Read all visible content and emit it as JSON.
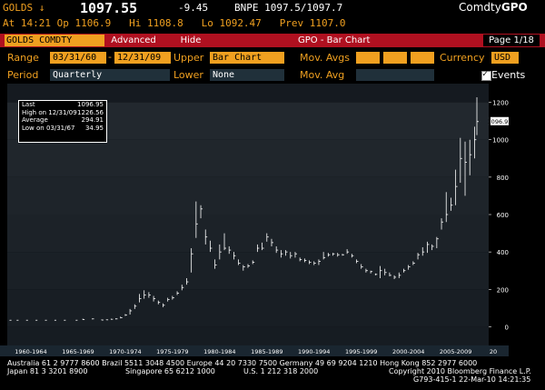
{
  "header": {
    "ticker": "GOLDS",
    "direction_glyph": "↓",
    "last_price": "1097.55",
    "change": "-9.45",
    "bid_ask": "BNPE 1097.5/1097.7",
    "brand_prefix": "Comdty",
    "brand_fn": "GPO",
    "time": "At 14:21",
    "open": "Op 1106.9",
    "high": "Hi 1108.8",
    "low": "Lo 1092.47",
    "prev": "Prev 1107.0"
  },
  "toolbar": {
    "security": "GOLDS COMDTY",
    "advanced_label": "Advanced",
    "hide_label": "Hide",
    "function_title": "GPO - Bar Chart",
    "page_info": "Page 1/18"
  },
  "settings": {
    "range_label": "Range",
    "range_start": "03/31/60",
    "range_sep": "-",
    "range_end": "12/31/09",
    "upper_label": "Upper",
    "upper_value": "Bar Chart",
    "mov_avgs_label_1": "Mov. Avgs",
    "currency_label": "Currency",
    "currency_value": "USD",
    "period_label": "Period",
    "period_value": "Quarterly",
    "lower_label": "Lower",
    "lower_value": "None",
    "mov_avgs_label_2": "Mov. Avg",
    "events_label": "Events",
    "events_checked": true
  },
  "legend": {
    "rows": [
      {
        "label": "Last",
        "value": "1096.95"
      },
      {
        "label": "High on 12/31/09",
        "value": "1226.56"
      },
      {
        "label": "Average",
        "value": "294.91"
      },
      {
        "label": "Low on 03/31/67",
        "value": "34.95"
      }
    ]
  },
  "chart_data": {
    "type": "bar",
    "last_label": "1096.95",
    "y_ticks": [
      0,
      200,
      400,
      600,
      800,
      1000,
      1200
    ],
    "ylim": [
      -100,
      1300
    ],
    "x_tick_labels": [
      "1960-1964",
      "1965-1969",
      "1970-1974",
      "1975-1979",
      "1980-1984",
      "1985-1989",
      "1990-1994",
      "1995-1999",
      "2000-2004",
      "2005-2009",
      "20"
    ],
    "xlim": [
      1960,
      2011
    ],
    "series": [
      {
        "values": [
          [
            1960.25,
            35,
            36,
            35
          ],
          [
            1961,
            35,
            36,
            35
          ],
          [
            1962,
            35,
            35.5,
            35
          ],
          [
            1963,
            35,
            35.5,
            35
          ],
          [
            1964,
            35,
            35.5,
            35
          ],
          [
            1965,
            35,
            35.5,
            35
          ],
          [
            1966,
            35,
            35.5,
            35
          ],
          [
            1967.25,
            35,
            35.5,
            34.95
          ],
          [
            1968,
            39,
            43,
            37
          ],
          [
            1969,
            42,
            44,
            40
          ],
          [
            1970,
            36,
            39,
            35
          ],
          [
            1970.5,
            37,
            39,
            36
          ],
          [
            1971,
            40,
            43,
            38
          ],
          [
            1971.5,
            42,
            45,
            40
          ],
          [
            1972,
            48,
            54,
            45
          ],
          [
            1972.5,
            62,
            68,
            58
          ],
          [
            1973,
            85,
            95,
            65
          ],
          [
            1973.5,
            110,
            120,
            95
          ],
          [
            1974,
            150,
            175,
            130
          ],
          [
            1974.5,
            170,
            195,
            150
          ],
          [
            1975,
            170,
            185,
            155
          ],
          [
            1975.5,
            150,
            165,
            135
          ],
          [
            1976,
            130,
            140,
            120
          ],
          [
            1976.5,
            115,
            125,
            105
          ],
          [
            1977,
            145,
            155,
            135
          ],
          [
            1977.5,
            155,
            165,
            145
          ],
          [
            1978,
            180,
            190,
            170
          ],
          [
            1978.5,
            210,
            225,
            195
          ],
          [
            1979,
            240,
            260,
            225
          ],
          [
            1979.5,
            390,
            420,
            290
          ],
          [
            1980,
            550,
            670,
            475
          ],
          [
            1980.5,
            630,
            650,
            580
          ],
          [
            1981,
            480,
            520,
            440
          ],
          [
            1981.5,
            420,
            460,
            400
          ],
          [
            1982,
            330,
            360,
            310
          ],
          [
            1982.5,
            400,
            440,
            360
          ],
          [
            1983,
            420,
            500,
            410
          ],
          [
            1983.5,
            410,
            430,
            390
          ],
          [
            1984,
            380,
            400,
            360
          ],
          [
            1984.5,
            340,
            360,
            330
          ],
          [
            1985,
            320,
            330,
            300
          ],
          [
            1985.5,
            325,
            335,
            315
          ],
          [
            1986,
            345,
            355,
            335
          ],
          [
            1986.5,
            420,
            440,
            400
          ],
          [
            1987,
            420,
            450,
            410
          ],
          [
            1987.5,
            480,
            500,
            455
          ],
          [
            1988,
            450,
            470,
            430
          ],
          [
            1988.5,
            410,
            430,
            395
          ],
          [
            1989,
            390,
            410,
            370
          ],
          [
            1989.5,
            400,
            410,
            380
          ],
          [
            1990,
            380,
            400,
            365
          ],
          [
            1990.5,
            390,
            400,
            370
          ],
          [
            1991,
            360,
            370,
            350
          ],
          [
            1991.5,
            355,
            365,
            345
          ],
          [
            1992,
            345,
            355,
            335
          ],
          [
            1992.5,
            340,
            350,
            330
          ],
          [
            1993,
            350,
            360,
            330
          ],
          [
            1993.5,
            370,
            400,
            360
          ],
          [
            1994,
            385,
            395,
            375
          ],
          [
            1994.5,
            390,
            395,
            380
          ],
          [
            1995,
            385,
            395,
            375
          ],
          [
            1995.5,
            385,
            390,
            380
          ],
          [
            1996,
            400,
            415,
            390
          ],
          [
            1996.5,
            380,
            390,
            370
          ],
          [
            1997,
            350,
            360,
            340
          ],
          [
            1997.5,
            320,
            335,
            310
          ],
          [
            1998,
            300,
            310,
            290
          ],
          [
            1998.5,
            295,
            300,
            285
          ],
          [
            1999,
            280,
            285,
            275
          ],
          [
            1999.5,
            300,
            325,
            260
          ],
          [
            2000,
            290,
            310,
            275
          ],
          [
            2000.5,
            275,
            290,
            270
          ],
          [
            2001,
            265,
            275,
            255
          ],
          [
            2001.5,
            275,
            290,
            260
          ],
          [
            2002,
            300,
            310,
            290
          ],
          [
            2002.5,
            320,
            330,
            305
          ],
          [
            2003,
            340,
            350,
            330
          ],
          [
            2003.5,
            385,
            395,
            360
          ],
          [
            2004,
            400,
            425,
            380
          ],
          [
            2004.5,
            440,
            455,
            395
          ],
          [
            2005,
            430,
            440,
            410
          ],
          [
            2005.5,
            470,
            480,
            420
          ],
          [
            2006,
            560,
            580,
            520
          ],
          [
            2006.5,
            600,
            720,
            560
          ],
          [
            2007,
            650,
            690,
            620
          ],
          [
            2007.5,
            750,
            840,
            650
          ],
          [
            2008,
            900,
            1010,
            770
          ],
          [
            2008.5,
            880,
            990,
            700
          ],
          [
            2009,
            920,
            1000,
            810
          ],
          [
            2009.5,
            1000,
            1070,
            900
          ],
          [
            2009.75,
            1097,
            1227,
            1025
          ]
        ]
      }
    ]
  },
  "footer": {
    "line1": "Australia 61 2 9777 8600 Brazil 5511 3048 4500 Europe 44 20 7330 7500 Germany 49 69 9204 1210 Hong Kong 852 2977 6000",
    "line2a": "Japan 81 3 3201 8900",
    "line2b": "Singapore 65 6212 1000",
    "line2c": "U.S. 1 212 318 2000",
    "line2d": "Copyright 2010 Bloomberg Finance L.P.",
    "line3": "G793-415-1 22-Mar-10 14:21:35"
  }
}
